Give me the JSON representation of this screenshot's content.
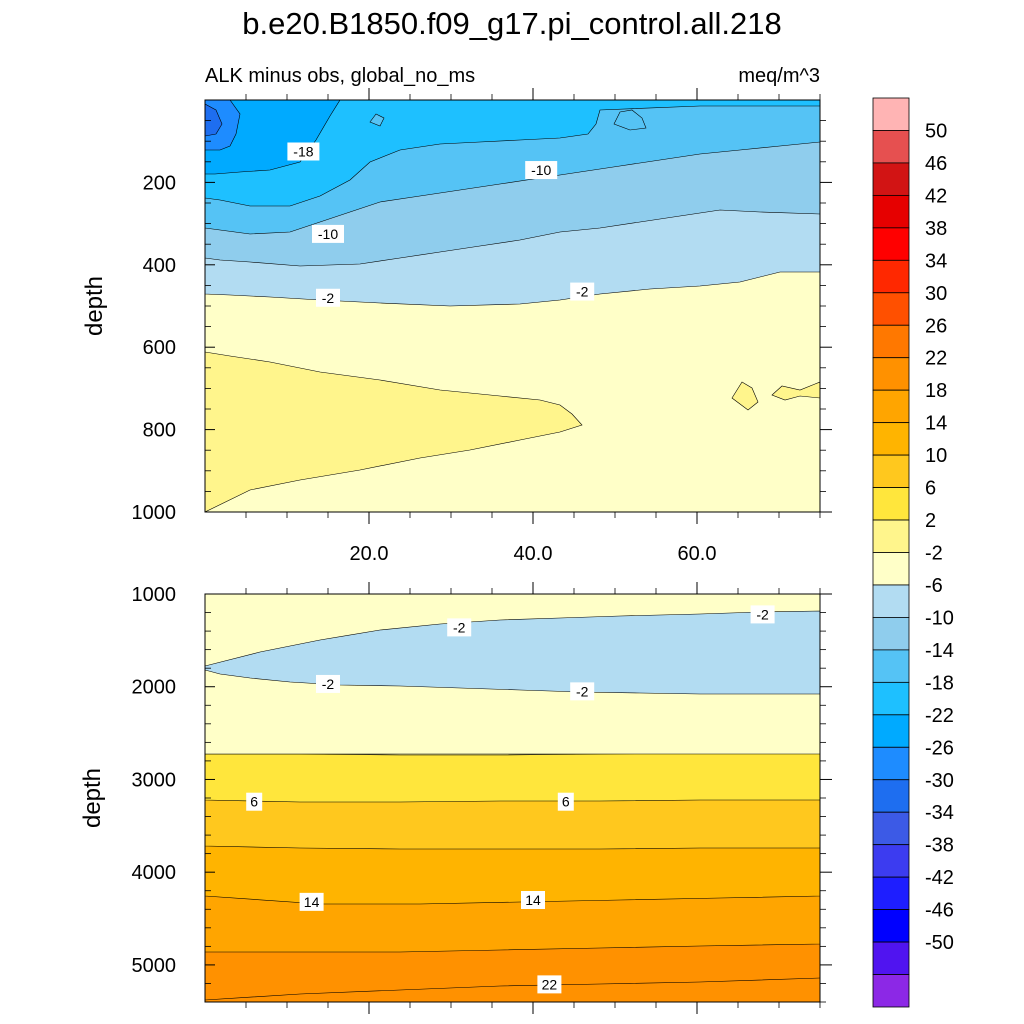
{
  "title": "b.e20.B1850.f09_g17.pi_control.all.218",
  "subtitle_left": "ALK minus obs, global_no_ms",
  "subtitle_right": "meq/m^3",
  "chart_data": [
    {
      "type": "heatmap",
      "panel": "upper",
      "xlabel": "",
      "ylabel": "depth",
      "xlim": [
        0,
        75
      ],
      "ylim": [
        1000,
        0
      ],
      "x_ticks": [
        "20.0",
        "40.0",
        "60.0"
      ],
      "y_ticks": [
        "200",
        "400",
        "600",
        "800",
        "1000"
      ],
      "contour_labels": [
        {
          "text": "-18",
          "x": 12,
          "y": 125
        },
        {
          "text": "-10",
          "x": 41,
          "y": 170
        },
        {
          "text": "-10",
          "x": 15,
          "y": 325
        },
        {
          "text": "-2",
          "x": 15,
          "y": 480
        },
        {
          "text": "-2",
          "x": 46,
          "y": 465
        }
      ],
      "bands": [
        {
          "range": "< -26",
          "color": "#1e8cff"
        },
        {
          "range": "-22 to -18",
          "color": "#00aaff"
        },
        {
          "range": "-18 to -14",
          "color": "#1ec0ff"
        },
        {
          "range": "-14 to -10",
          "color": "#55c3f5"
        },
        {
          "range": "-10 to -6",
          "color": "#8fcded"
        },
        {
          "range": "-6 to -2",
          "color": "#b2dcf2"
        },
        {
          "range": "-2 to 2",
          "color": "#ffffc8"
        },
        {
          "range": "2 to 6",
          "color": "#fff58c"
        }
      ]
    },
    {
      "type": "heatmap",
      "panel": "lower",
      "xlabel": "",
      "ylabel": "depth",
      "xlim": [
        0,
        75
      ],
      "ylim": [
        5400,
        1000
      ],
      "y_ticks": [
        "1000",
        "2000",
        "3000",
        "4000",
        "5000"
      ],
      "contour_labels": [
        {
          "text": "-2",
          "x": 31,
          "y": 1360
        },
        {
          "text": "-2",
          "x": 68,
          "y": 1220
        },
        {
          "text": "-2",
          "x": 15,
          "y": 1970
        },
        {
          "text": "-2",
          "x": 46,
          "y": 2050
        },
        {
          "text": "6",
          "x": 6,
          "y": 3240
        },
        {
          "text": "6",
          "x": 44,
          "y": 3240
        },
        {
          "text": "14",
          "x": 13,
          "y": 4320
        },
        {
          "text": "14",
          "x": 40,
          "y": 4300
        },
        {
          "text": "22",
          "x": 42,
          "y": 5210
        }
      ]
    }
  ],
  "colorbar": {
    "labels": [
      "50",
      "46",
      "42",
      "38",
      "34",
      "30",
      "26",
      "22",
      "18",
      "14",
      "10",
      "6",
      "2",
      "-2",
      "-6",
      "-10",
      "-14",
      "-18",
      "-22",
      "-26",
      "-30",
      "-34",
      "-38",
      "-42",
      "-46",
      "-50"
    ],
    "colors": [
      "#ffb4b4",
      "#e65050",
      "#d21414",
      "#e60000",
      "#ff0000",
      "#ff2800",
      "#ff5000",
      "#ff7800",
      "#ff9100",
      "#ffa500",
      "#ffb400",
      "#ffc81e",
      "#ffe63c",
      "#fff58c",
      "#ffffc8",
      "#b2dcf2",
      "#8fcded",
      "#55c3f5",
      "#1ec0ff",
      "#00aaff",
      "#1e8cff",
      "#1e6ef0",
      "#3c5ae6",
      "#3c3cf0",
      "#1e1eff",
      "#0000ff",
      "#5014f0",
      "#8c28e6"
    ]
  }
}
